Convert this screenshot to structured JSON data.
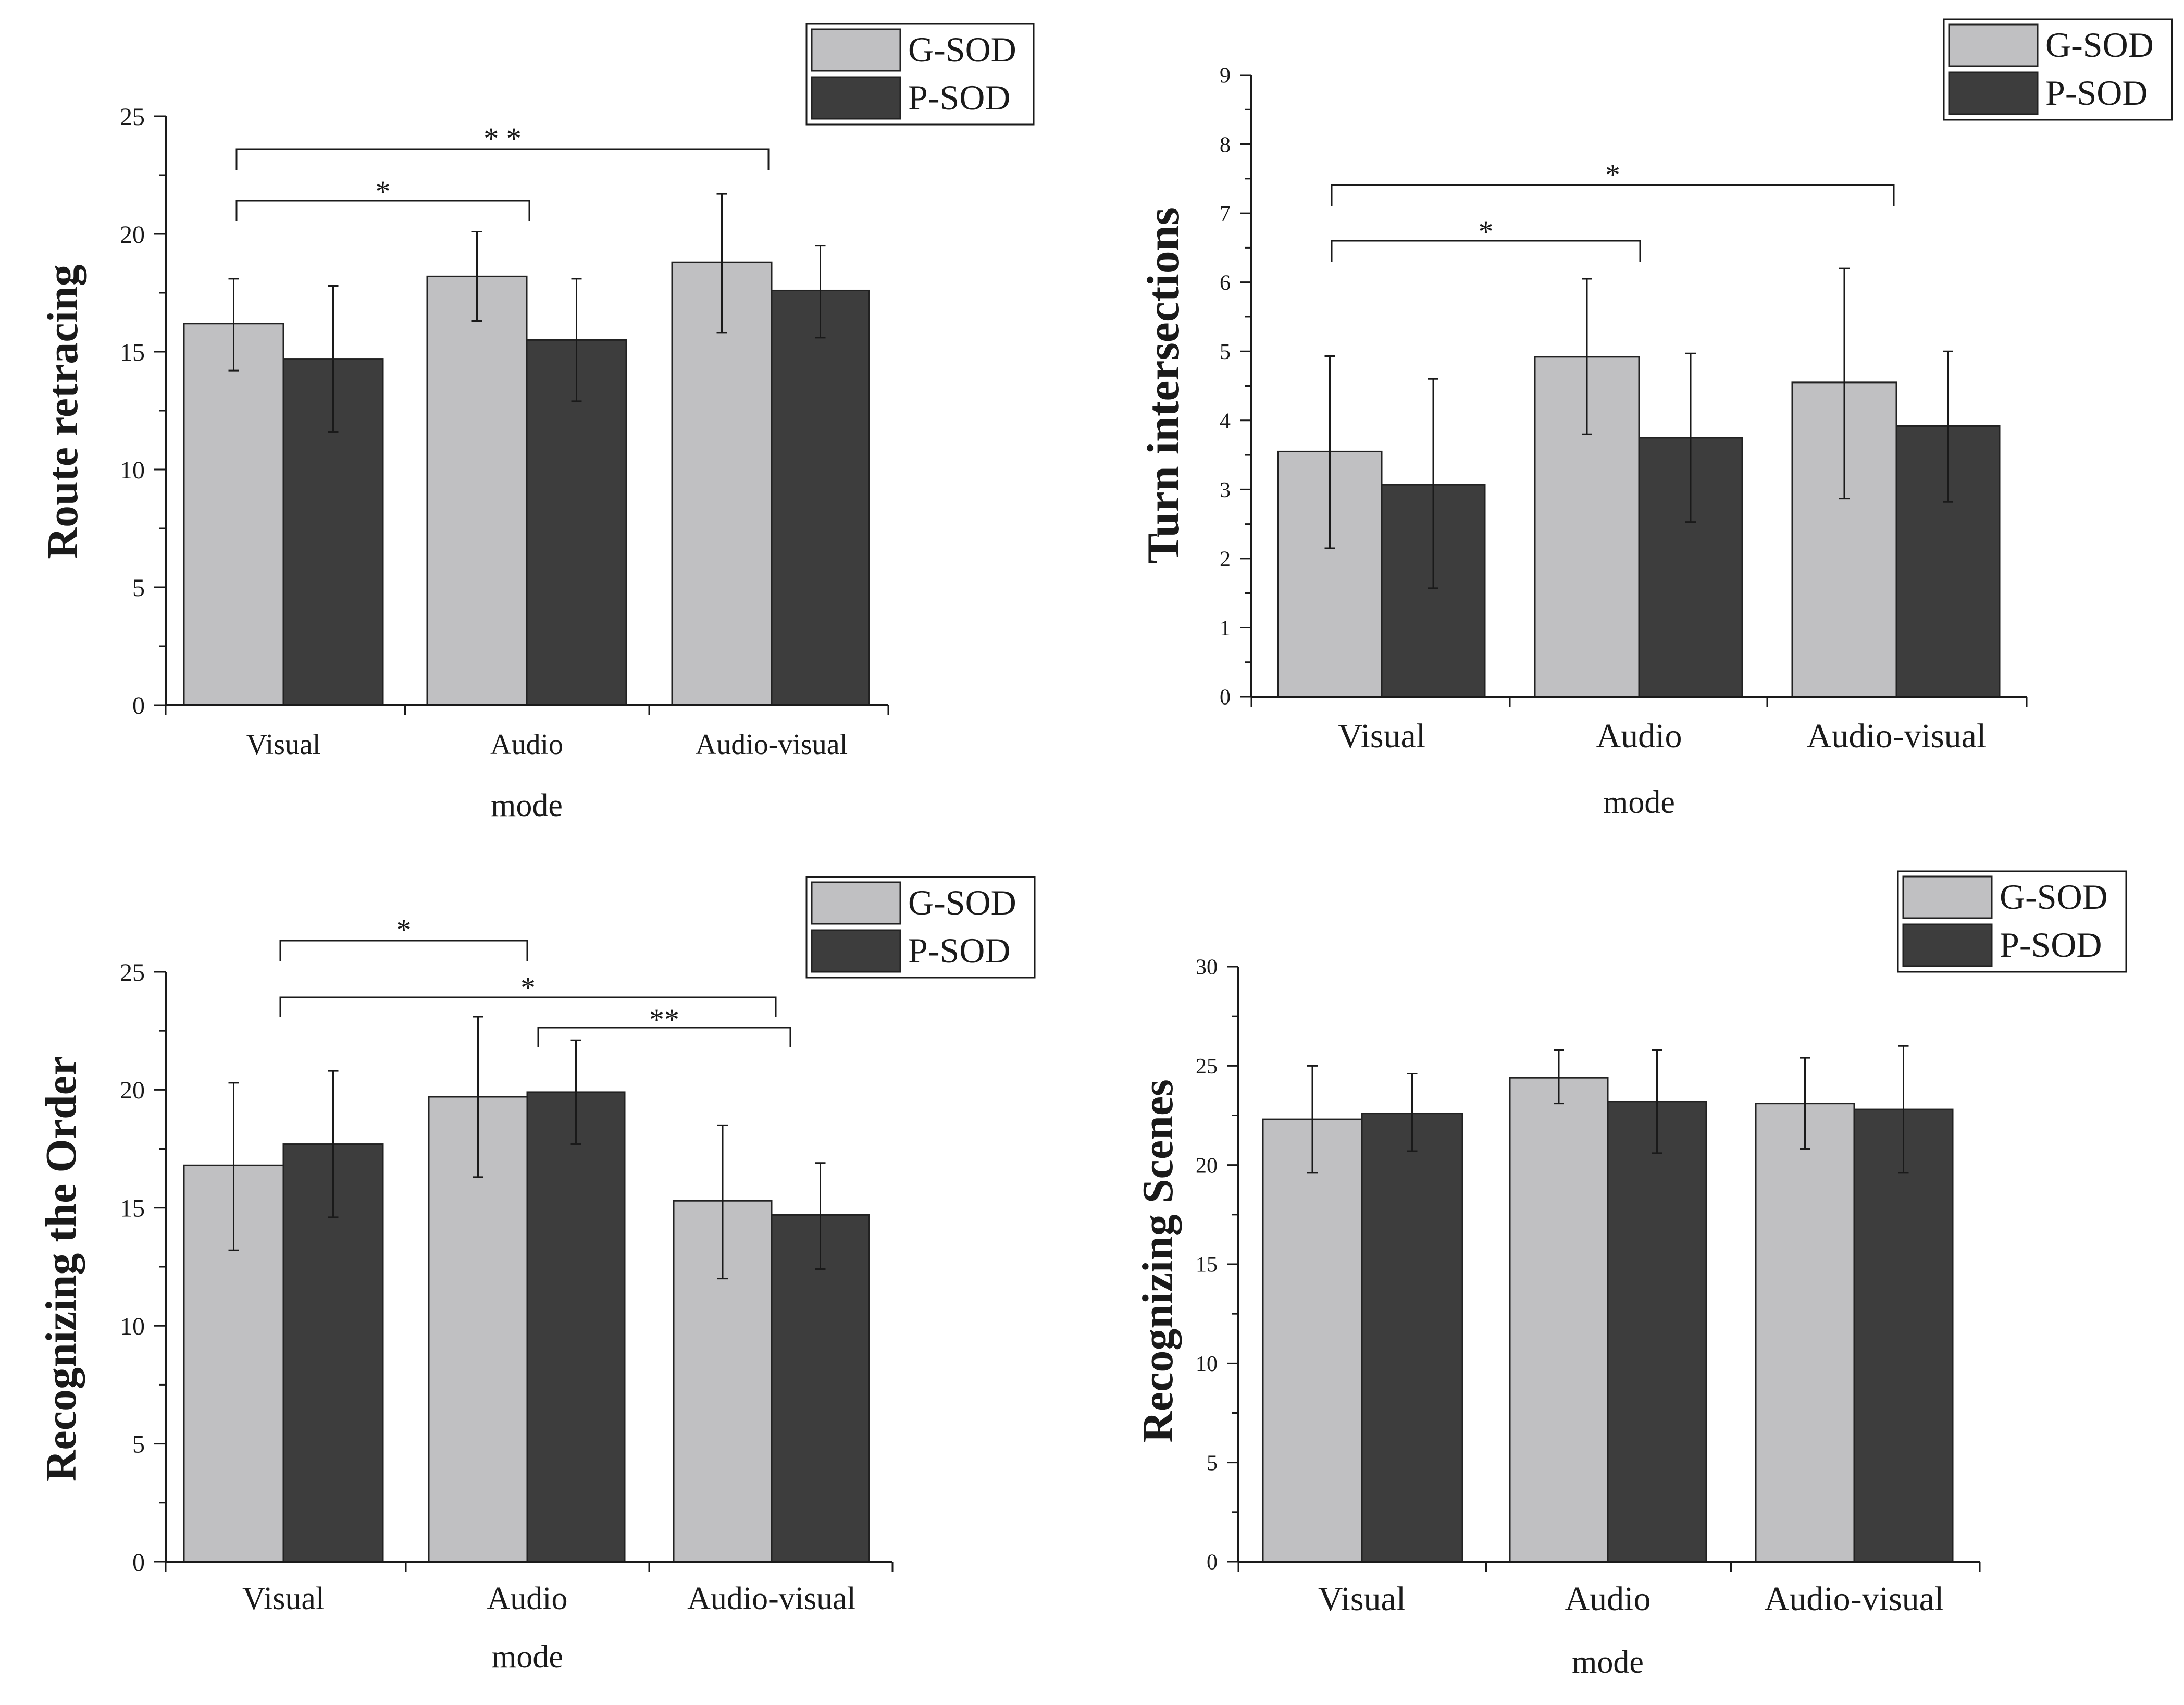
{
  "colors": {
    "gsod": "#c0c0c2",
    "psod": "#3d3d3d",
    "ink": "#1a1a1a"
  },
  "chart_data": [
    {
      "type": "bar",
      "xlabel": "mode",
      "ylabel": "Route retracing",
      "categories": [
        "Visual",
        "Audio",
        "Audio-visual"
      ],
      "ylim": [
        0,
        25
      ],
      "yticks": [
        0,
        5,
        10,
        15,
        20,
        25
      ],
      "legend": "top-right",
      "grid": false,
      "series": [
        {
          "name": "G-SOD",
          "values": [
            16.2,
            18.2,
            18.8
          ],
          "error_low": [
            14.2,
            16.3,
            15.8
          ],
          "error_high": [
            18.1,
            20.1,
            21.7
          ]
        },
        {
          "name": "P-SOD",
          "values": [
            14.7,
            15.5,
            17.6
          ],
          "error_low": [
            11.6,
            12.9,
            15.6
          ],
          "error_high": [
            17.8,
            18.1,
            19.5
          ]
        }
      ],
      "significance": [
        {
          "from": "Visual",
          "to": "Audio",
          "label": "*"
        },
        {
          "from": "Visual",
          "to": "Audio-visual",
          "label": "* *"
        }
      ]
    },
    {
      "type": "bar",
      "xlabel": "mode",
      "ylabel": "Turn intersections",
      "categories": [
        "Visual",
        "Audio",
        "Audio-visual"
      ],
      "ylim": [
        0,
        9
      ],
      "yticks": [
        0,
        1,
        2,
        3,
        4,
        5,
        6,
        7,
        8,
        9
      ],
      "legend": "top-right",
      "grid": false,
      "series": [
        {
          "name": "G-SOD",
          "values": [
            3.55,
            4.92,
            4.55
          ],
          "error_low": [
            2.15,
            3.8,
            2.87
          ],
          "error_high": [
            4.93,
            6.05,
            6.2
          ]
        },
        {
          "name": "P-SOD",
          "values": [
            3.07,
            3.75,
            3.92
          ],
          "error_low": [
            1.57,
            2.53,
            2.82
          ],
          "error_high": [
            4.6,
            4.97,
            5.0
          ]
        }
      ],
      "significance": [
        {
          "from": "Visual",
          "to": "Audio",
          "label": "*"
        },
        {
          "from": "Visual",
          "to": "Audio-visual",
          "label": "*"
        }
      ]
    },
    {
      "type": "bar",
      "xlabel": "mode",
      "ylabel": "Recognizing the Order",
      "categories": [
        "Visual",
        "Audio",
        "Audio-visual"
      ],
      "ylim": [
        0,
        25
      ],
      "yticks": [
        0,
        5,
        10,
        15,
        20,
        25
      ],
      "legend": "top-right",
      "grid": false,
      "series": [
        {
          "name": "G-SOD",
          "values": [
            16.8,
            19.7,
            15.3
          ],
          "error_low": [
            13.2,
            16.3,
            12.0
          ],
          "error_high": [
            20.3,
            23.1,
            18.5
          ]
        },
        {
          "name": "P-SOD",
          "values": [
            17.7,
            19.9,
            14.7
          ],
          "error_low": [
            14.6,
            17.7,
            12.4
          ],
          "error_high": [
            20.8,
            22.1,
            16.9
          ]
        }
      ],
      "significance": [
        {
          "from": "Visual",
          "to": "Audio",
          "label": "*"
        },
        {
          "from": "Visual",
          "to": "Audio-visual",
          "label": "*"
        },
        {
          "from": "Audio",
          "to": "Audio-visual",
          "label": "**"
        }
      ]
    },
    {
      "type": "bar",
      "xlabel": "mode",
      "ylabel": "Recognizing Scenes",
      "categories": [
        "Visual",
        "Audio",
        "Audio-visual"
      ],
      "ylim": [
        0,
        30
      ],
      "yticks": [
        0,
        5,
        10,
        15,
        20,
        25,
        30
      ],
      "legend": "top-right",
      "grid": false,
      "series": [
        {
          "name": "G-SOD",
          "values": [
            22.3,
            24.4,
            23.1
          ],
          "error_low": [
            19.6,
            23.1,
            20.8
          ],
          "error_high": [
            25.0,
            25.8,
            25.4
          ]
        },
        {
          "name": "P-SOD",
          "values": [
            22.6,
            23.2,
            22.8
          ],
          "error_low": [
            20.7,
            20.6,
            19.6
          ],
          "error_high": [
            24.6,
            25.8,
            26.0
          ]
        }
      ],
      "significance": []
    }
  ]
}
